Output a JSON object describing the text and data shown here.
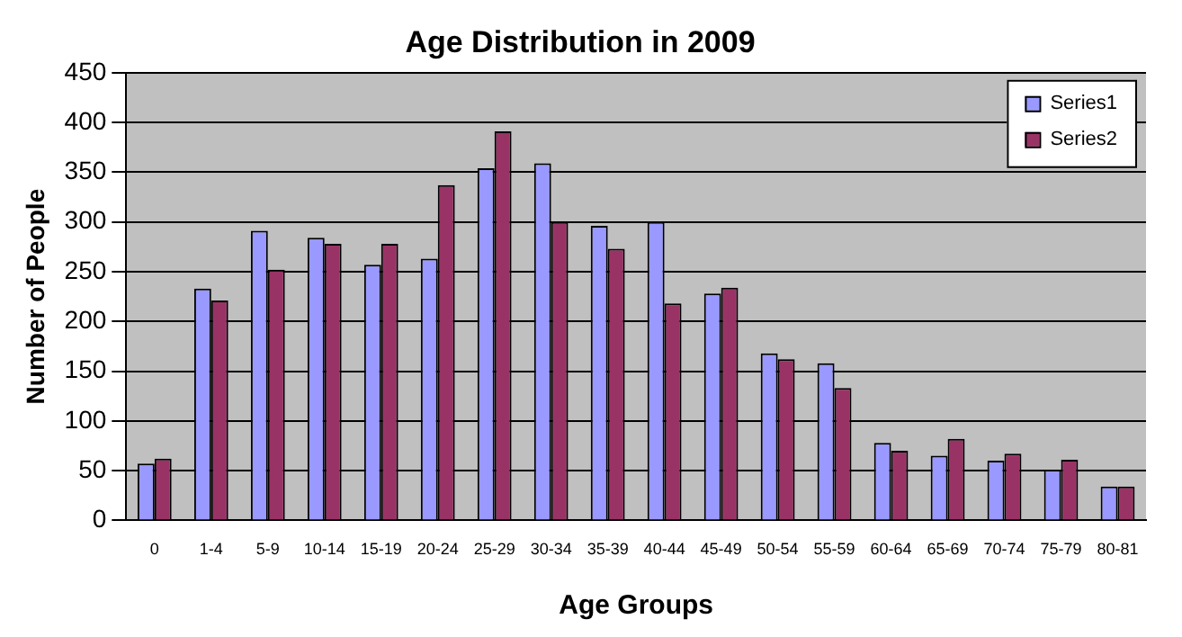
{
  "chart_data": {
    "type": "bar",
    "title": "Age Distribution in 2009",
    "xlabel": "Age Groups",
    "ylabel": "Number of People",
    "categories": [
      "0",
      "1-4",
      "5-9",
      "10-14",
      "15-19",
      "20-24",
      "25-29",
      "30-34",
      "35-39",
      "40-44",
      "45-49",
      "50-54",
      "55-59",
      "60-64",
      "65-69",
      "70-74",
      "75-79",
      "80-81"
    ],
    "series": [
      {
        "name": "Series1",
        "color": "#9999ff",
        "values": [
          57,
          233,
          291,
          284,
          257,
          263,
          354,
          359,
          296,
          300,
          228,
          168,
          158,
          78,
          65,
          60,
          51,
          34
        ]
      },
      {
        "name": "Series2",
        "color": "#993366",
        "values": [
          62,
          221,
          252,
          278,
          278,
          337,
          391,
          300,
          273,
          218,
          234,
          162,
          133,
          70,
          82,
          67,
          61,
          34
        ]
      }
    ],
    "ylim": [
      0,
      450
    ],
    "yticks": [
      0,
      50,
      100,
      150,
      200,
      250,
      300,
      350,
      400,
      450
    ],
    "grid": "y",
    "legend": "top right"
  }
}
